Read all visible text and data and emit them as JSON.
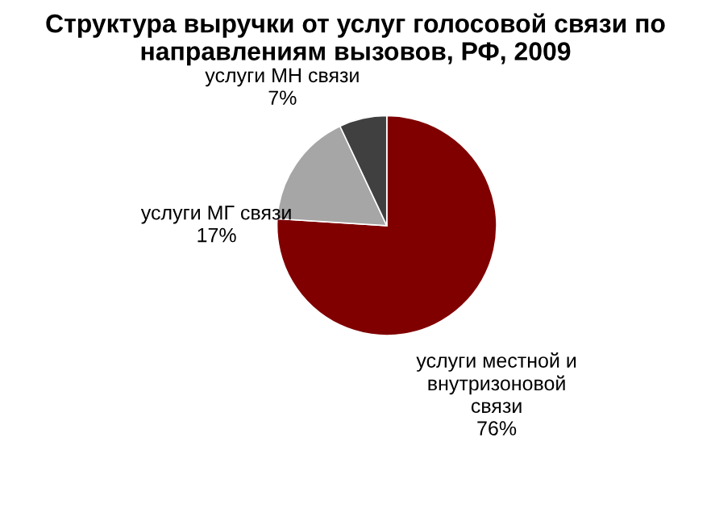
{
  "chart_data": {
    "type": "pie",
    "title": "Структура выручки от услуг голосовой связи по направлениям вызовов, РФ, 2009",
    "categories": [
      "услуги местной и внутризоновой связи",
      "услуги МГ связи",
      "услуги МН связи"
    ],
    "values": [
      76,
      17,
      7
    ],
    "value_labels": [
      "76%",
      "17%",
      "7%"
    ],
    "colors": [
      "#800000",
      "#a6a6a6",
      "#404040"
    ],
    "legend": false
  }
}
